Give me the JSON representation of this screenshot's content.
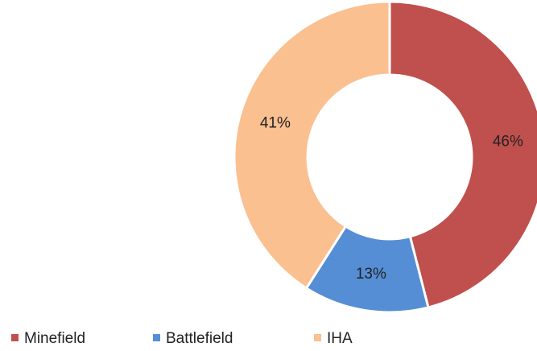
{
  "chart_data": {
    "type": "donut",
    "categories": [
      "Minefield",
      "Battlefield",
      "IHA"
    ],
    "values": [
      46,
      13,
      41
    ],
    "value_labels": [
      "46%",
      "13%",
      "41%"
    ],
    "colors": [
      "#c0504d",
      "#558ed5",
      "#fac090"
    ],
    "legend": "bottom"
  }
}
